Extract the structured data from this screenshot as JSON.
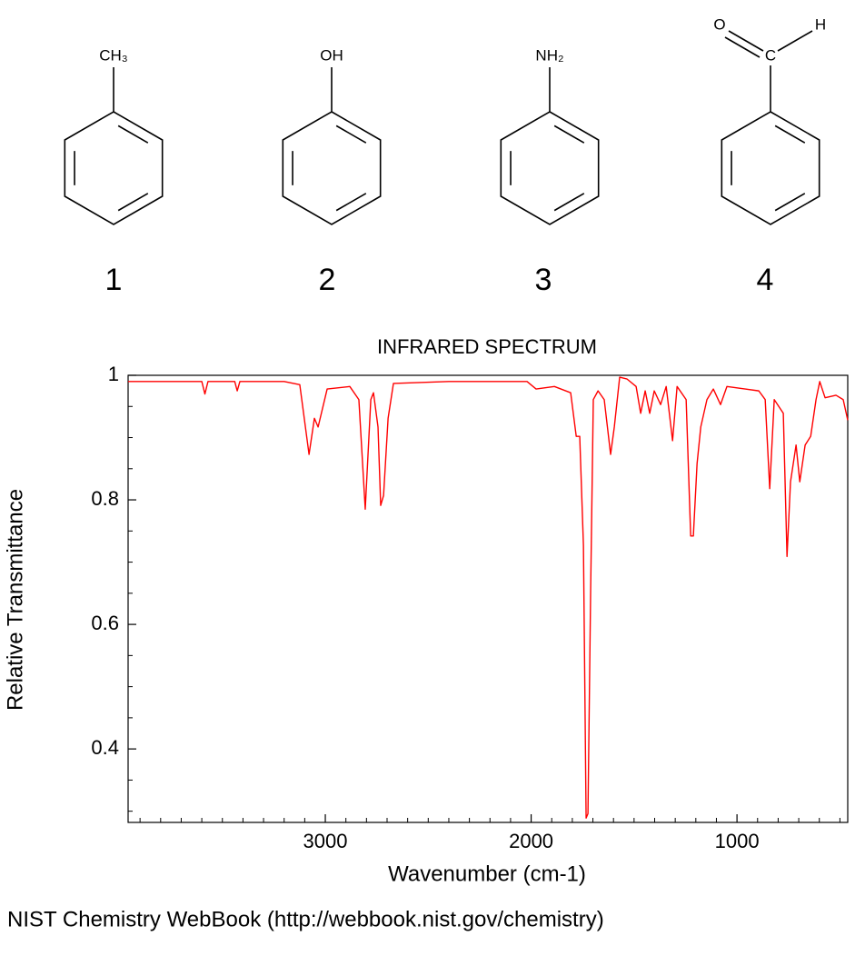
{
  "molecules": [
    {
      "label": "CH₃",
      "number": "1"
    },
    {
      "label": "OH",
      "number": "2"
    },
    {
      "label": "NH₂",
      "number": "3"
    },
    {
      "labels": [
        "O",
        "C",
        "H"
      ],
      "number": "4"
    }
  ],
  "chart_data": {
    "type": "line",
    "title": "INFRARED SPECTRUM",
    "x_label": "Wavenumber (cm-1)",
    "y_label": "Relative Transmittance",
    "xlim": [
      3958,
      462
    ],
    "ylim": [
      0.282,
      1.0
    ],
    "xticks": [
      3000,
      2000,
      1000
    ],
    "yticks": [
      0.4,
      0.6,
      0.8,
      1
    ],
    "xminorticks": [
      3900,
      3800,
      3700,
      3600,
      3500,
      3400,
      3300,
      3200,
      3100,
      2900,
      2800,
      2700,
      2600,
      2500,
      2400,
      2300,
      2200,
      2100,
      1900,
      1800,
      1700,
      1600,
      1500,
      1400,
      1300,
      1200,
      1100,
      900,
      800,
      700,
      600,
      500
    ],
    "yminorticks": [
      0.3,
      0.35,
      0.45,
      0.5,
      0.55,
      0.65,
      0.7,
      0.75,
      0.85,
      0.9,
      0.95
    ],
    "series": [
      {
        "color": "#ff0000",
        "x": [
          3958,
          3700,
          3600,
          3585,
          3570,
          3440,
          3428,
          3415,
          3200,
          3124,
          3079,
          3053,
          3035,
          2991,
          2881,
          2837,
          2806,
          2779,
          2766,
          2744,
          2731,
          2717,
          2695,
          2669,
          2400,
          2020,
          1976,
          1887,
          1808,
          1781,
          1764,
          1746,
          1733,
          1724,
          1711,
          1698,
          1675,
          1645,
          1614,
          1596,
          1570,
          1534,
          1490,
          1468,
          1446,
          1424,
          1402,
          1371,
          1344,
          1313,
          1291,
          1247,
          1225,
          1212,
          1194,
          1176,
          1146,
          1115,
          1080,
          1049,
          960,
          894,
          863,
          841,
          819,
          775,
          757,
          740,
          713,
          695,
          669,
          642,
          616,
          598,
          572,
          519,
          484,
          462
        ],
        "values": [
          0.99,
          0.99,
          0.99,
          0.97,
          0.99,
          0.99,
          0.975,
          0.99,
          0.99,
          0.985,
          0.873,
          0.931,
          0.917,
          0.978,
          0.982,
          0.961,
          0.785,
          0.961,
          0.972,
          0.917,
          0.791,
          0.807,
          0.931,
          0.987,
          0.99,
          0.99,
          0.978,
          0.982,
          0.972,
          0.902,
          0.902,
          0.727,
          0.289,
          0.296,
          0.654,
          0.961,
          0.975,
          0.961,
          0.873,
          0.917,
          0.997,
          0.994,
          0.982,
          0.939,
          0.975,
          0.939,
          0.975,
          0.953,
          0.982,
          0.895,
          0.982,
          0.961,
          0.742,
          0.742,
          0.858,
          0.917,
          0.961,
          0.978,
          0.953,
          0.982,
          0.978,
          0.975,
          0.961,
          0.818,
          0.961,
          0.939,
          0.709,
          0.829,
          0.888,
          0.829,
          0.888,
          0.902,
          0.961,
          0.99,
          0.964,
          0.968,
          0.961,
          0.928
        ]
      }
    ]
  },
  "footer": "NIST Chemistry WebBook (http://webbook.nist.gov/chemistry)"
}
